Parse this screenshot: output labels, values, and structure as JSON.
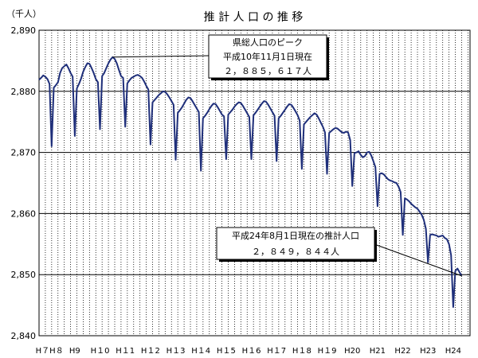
{
  "chart_data": {
    "type": "line",
    "title": "推 計 人 口 の 推 移",
    "ylabel": "（千人）",
    "xlabel": "",
    "ylim": [
      2840,
      2890
    ],
    "yticks": [
      "2,890",
      "2,880",
      "2,870",
      "2,860",
      "2,850",
      "2,840"
    ],
    "grid": "on",
    "xticks": [
      {
        "t": 0,
        "label": "H７H８"
      },
      {
        "t": 12,
        "label": "H9"
      },
      {
        "t": 24,
        "label": "H１0"
      },
      {
        "t": 36,
        "label": "H１1"
      },
      {
        "t": 48,
        "label": "H１2"
      },
      {
        "t": 60,
        "label": "H１3"
      },
      {
        "t": 72,
        "label": "H１4"
      },
      {
        "t": 84,
        "label": "H１5"
      },
      {
        "t": 96,
        "label": "H１6"
      },
      {
        "t": 108,
        "label": "H１7"
      },
      {
        "t": 120,
        "label": "H１8"
      },
      {
        "t": 132,
        "label": "H１9"
      },
      {
        "t": 144,
        "label": "H20"
      },
      {
        "t": 156,
        "label": "H21"
      },
      {
        "t": 168,
        "label": "H22"
      },
      {
        "t": 180,
        "label": "H23"
      },
      {
        "t": 192,
        "label": "H24"
      }
    ],
    "series": [
      {
        "color": "#1f2f7a",
        "points": [
          [
            -5,
            2881.9
          ],
          [
            -4,
            2882.2
          ],
          [
            -3,
            2882.6
          ],
          [
            -2,
            2882.4
          ],
          [
            -1,
            2882.0
          ],
          [
            0,
            2881.2
          ],
          [
            1,
            2871.0
          ],
          [
            2,
            2880.6
          ],
          [
            3,
            2881.0
          ],
          [
            4,
            2881.5
          ],
          [
            5,
            2883.0
          ],
          [
            6,
            2883.8
          ],
          [
            7,
            2884.1
          ],
          [
            8,
            2884.4
          ],
          [
            9,
            2883.8
          ],
          [
            10,
            2883.0
          ],
          [
            11,
            2882.4
          ],
          [
            12,
            2872.7
          ],
          [
            13,
            2880.5
          ],
          [
            14,
            2881.2
          ],
          [
            15,
            2882.1
          ],
          [
            16,
            2883.2
          ],
          [
            17,
            2884.0
          ],
          [
            18,
            2884.6
          ],
          [
            19,
            2884.5
          ],
          [
            20,
            2883.8
          ],
          [
            21,
            2883.0
          ],
          [
            22,
            2882.0
          ],
          [
            23,
            2881.5
          ],
          [
            24,
            2873.8
          ],
          [
            25,
            2882.5
          ],
          [
            26,
            2883.0
          ],
          [
            27,
            2883.8
          ],
          [
            28,
            2884.6
          ],
          [
            29,
            2885.2
          ],
          [
            30,
            2885.6
          ],
          [
            31,
            2885.3
          ],
          [
            32,
            2884.6
          ],
          [
            33,
            2883.5
          ],
          [
            34,
            2882.5
          ],
          [
            35,
            2882.2
          ],
          [
            36,
            2874.2
          ],
          [
            37,
            2881.3
          ],
          [
            38,
            2881.8
          ],
          [
            39,
            2882.2
          ],
          [
            40,
            2882.4
          ],
          [
            41,
            2882.6
          ],
          [
            42,
            2882.7
          ],
          [
            43,
            2882.5
          ],
          [
            44,
            2882.2
          ],
          [
            45,
            2881.6
          ],
          [
            46,
            2880.9
          ],
          [
            47,
            2880.3
          ],
          [
            48,
            2871.3
          ],
          [
            49,
            2878.2
          ],
          [
            50,
            2878.6
          ],
          [
            51,
            2879.0
          ],
          [
            52,
            2879.4
          ],
          [
            53,
            2879.7
          ],
          [
            54,
            2880.0
          ],
          [
            55,
            2879.9
          ],
          [
            56,
            2879.5
          ],
          [
            57,
            2879.0
          ],
          [
            58,
            2878.4
          ],
          [
            59,
            2877.8
          ],
          [
            60,
            2868.8
          ],
          [
            61,
            2876.5
          ],
          [
            62,
            2876.9
          ],
          [
            63,
            2877.4
          ],
          [
            64,
            2878.0
          ],
          [
            65,
            2878.6
          ],
          [
            66,
            2879.0
          ],
          [
            67,
            2878.9
          ],
          [
            68,
            2878.4
          ],
          [
            69,
            2877.8
          ],
          [
            70,
            2877.2
          ],
          [
            71,
            2876.6
          ],
          [
            72,
            2867.0
          ],
          [
            73,
            2875.6
          ],
          [
            74,
            2876.0
          ],
          [
            75,
            2876.5
          ],
          [
            76,
            2877.1
          ],
          [
            77,
            2877.6
          ],
          [
            78,
            2878.0
          ],
          [
            79,
            2877.9
          ],
          [
            80,
            2877.4
          ],
          [
            81,
            2876.8
          ],
          [
            82,
            2876.2
          ],
          [
            83,
            2875.9
          ],
          [
            84,
            2868.9
          ],
          [
            85,
            2876.2
          ],
          [
            86,
            2876.6
          ],
          [
            87,
            2877.0
          ],
          [
            88,
            2877.5
          ],
          [
            89,
            2877.9
          ],
          [
            90,
            2878.2
          ],
          [
            91,
            2878.1
          ],
          [
            92,
            2877.6
          ],
          [
            93,
            2877.0
          ],
          [
            94,
            2876.4
          ],
          [
            95,
            2875.8
          ],
          [
            96,
            2868.9
          ],
          [
            97,
            2876.1
          ],
          [
            98,
            2876.5
          ],
          [
            99,
            2877.0
          ],
          [
            100,
            2877.5
          ],
          [
            101,
            2878.0
          ],
          [
            102,
            2878.4
          ],
          [
            103,
            2878.3
          ],
          [
            104,
            2877.8
          ],
          [
            105,
            2877.2
          ],
          [
            106,
            2876.6
          ],
          [
            107,
            2876.0
          ],
          [
            108,
            2868.6
          ],
          [
            109,
            2875.6
          ],
          [
            110,
            2876.0
          ],
          [
            111,
            2876.5
          ],
          [
            112,
            2877.0
          ],
          [
            113,
            2877.5
          ],
          [
            114,
            2877.9
          ],
          [
            115,
            2877.8
          ],
          [
            116,
            2877.3
          ],
          [
            117,
            2876.7
          ],
          [
            118,
            2876.1
          ],
          [
            119,
            2875.2
          ],
          [
            120,
            2867.3
          ],
          [
            121,
            2874.6
          ],
          [
            122,
            2875.0
          ],
          [
            123,
            2875.4
          ],
          [
            124,
            2875.8
          ],
          [
            125,
            2876.1
          ],
          [
            126,
            2876.4
          ],
          [
            127,
            2876.2
          ],
          [
            128,
            2875.6
          ],
          [
            129,
            2874.9
          ],
          [
            130,
            2874.2
          ],
          [
            131,
            2873.3
          ],
          [
            132,
            2866.5
          ],
          [
            133,
            2873.2
          ],
          [
            134,
            2873.5
          ],
          [
            135,
            2873.8
          ],
          [
            136,
            2874.0
          ],
          [
            137,
            2873.9
          ],
          [
            138,
            2873.6
          ],
          [
            139,
            2873.3
          ],
          [
            140,
            2873.2
          ],
          [
            141,
            2873.4
          ],
          [
            142,
            2873.3
          ],
          [
            143,
            2872.0
          ],
          [
            144,
            2864.5
          ],
          [
            145,
            2869.9
          ],
          [
            146,
            2870.0
          ],
          [
            147,
            2870.2
          ],
          [
            148,
            2869.6
          ],
          [
            149,
            2869.2
          ],
          [
            150,
            2869.4
          ],
          [
            151,
            2870.0
          ],
          [
            152,
            2870.1
          ],
          [
            153,
            2869.5
          ],
          [
            154,
            2868.6
          ],
          [
            155,
            2867.6
          ],
          [
            156,
            2861.2
          ],
          [
            157,
            2866.5
          ],
          [
            158,
            2866.6
          ],
          [
            159,
            2866.4
          ],
          [
            160,
            2866.0
          ],
          [
            161,
            2865.6
          ],
          [
            162,
            2865.4
          ],
          [
            163,
            2865.3
          ],
          [
            164,
            2865.1
          ],
          [
            165,
            2865.0
          ],
          [
            166,
            2864.4
          ],
          [
            167,
            2863.5
          ],
          [
            168,
            2856.5
          ],
          [
            169,
            2862.5
          ],
          [
            170,
            2862.3
          ],
          [
            171,
            2862.0
          ],
          [
            172,
            2861.6
          ],
          [
            173,
            2861.3
          ],
          [
            174,
            2861.0
          ],
          [
            175,
            2860.8
          ],
          [
            176,
            2860.3
          ],
          [
            177,
            2859.8
          ],
          [
            178,
            2859.0
          ],
          [
            179,
            2857.5
          ],
          [
            180,
            2852.0
          ],
          [
            181,
            2856.5
          ],
          [
            182,
            2856.6
          ],
          [
            183,
            2856.5
          ],
          [
            184,
            2856.4
          ],
          [
            185,
            2856.2
          ],
          [
            186,
            2856.3
          ],
          [
            187,
            2856.4
          ],
          [
            188,
            2856.0
          ],
          [
            189,
            2855.8
          ],
          [
            190,
            2855.0
          ],
          [
            191,
            2853.2
          ],
          [
            192,
            2844.7
          ],
          [
            193,
            2850.6
          ],
          [
            194,
            2851.0
          ],
          [
            195,
            2850.4
          ],
          [
            196,
            2849.8
          ]
        ]
      }
    ],
    "annotations": [
      {
        "lines": [
          "県総人口のピーク",
          "平成10年11月1日現在",
          "２，８８５，６１７人"
        ],
        "target": [
          30,
          2885.6
        ]
      },
      {
        "lines": [
          "平成24年8月1日現在の推計人口",
          "２，８４９，８４４人"
        ],
        "target": [
          196,
          2849.8
        ]
      }
    ]
  }
}
